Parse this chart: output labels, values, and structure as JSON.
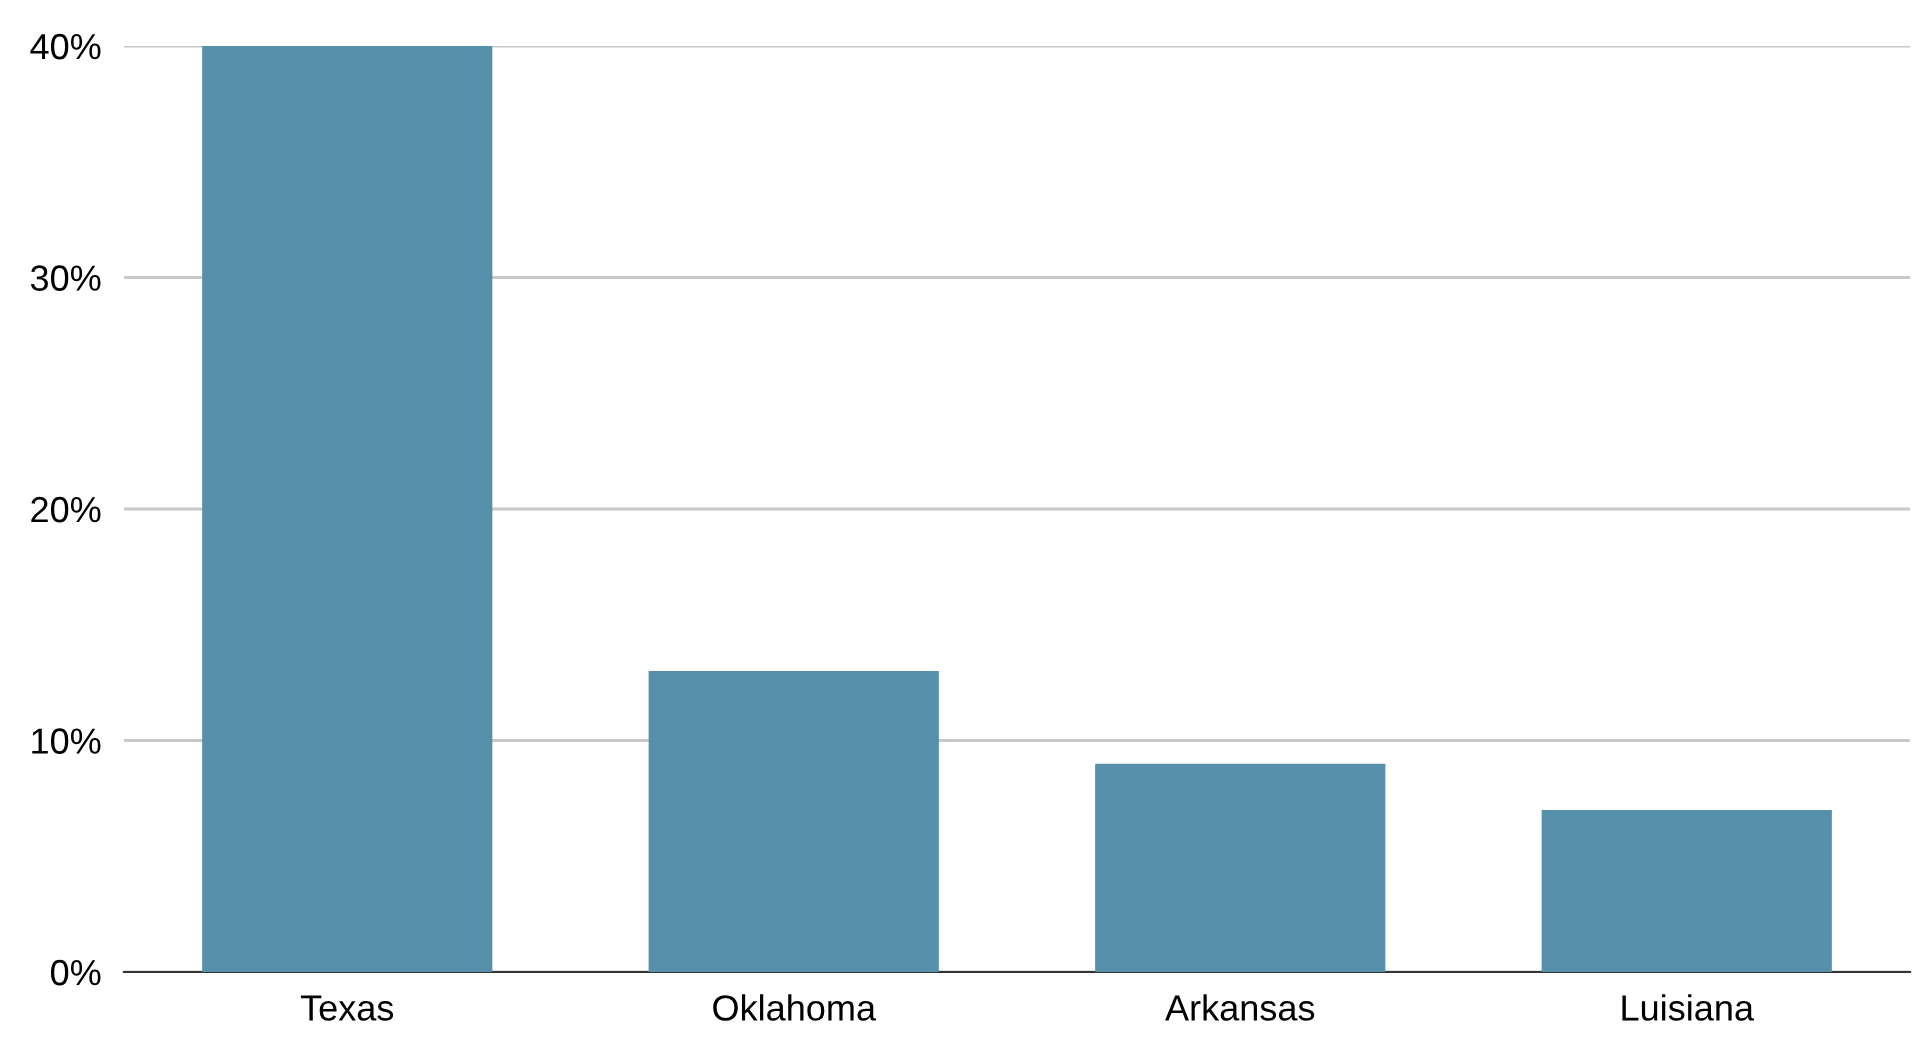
{
  "chart_data": {
    "type": "bar",
    "categories": [
      "Texas",
      "Oklahoma",
      "Arkansas",
      "Luisiana"
    ],
    "values": [
      40,
      13,
      9,
      7
    ],
    "color": "#5690aa",
    "ylim": [
      0,
      40
    ],
    "yticks": [
      {
        "value": 0,
        "label": "0%"
      },
      {
        "value": 10,
        "label": "10%"
      },
      {
        "value": 20,
        "label": "20%"
      },
      {
        "value": 30,
        "label": "30%"
      },
      {
        "value": 40,
        "label": "40%"
      }
    ],
    "grid": "y",
    "legend": false
  }
}
